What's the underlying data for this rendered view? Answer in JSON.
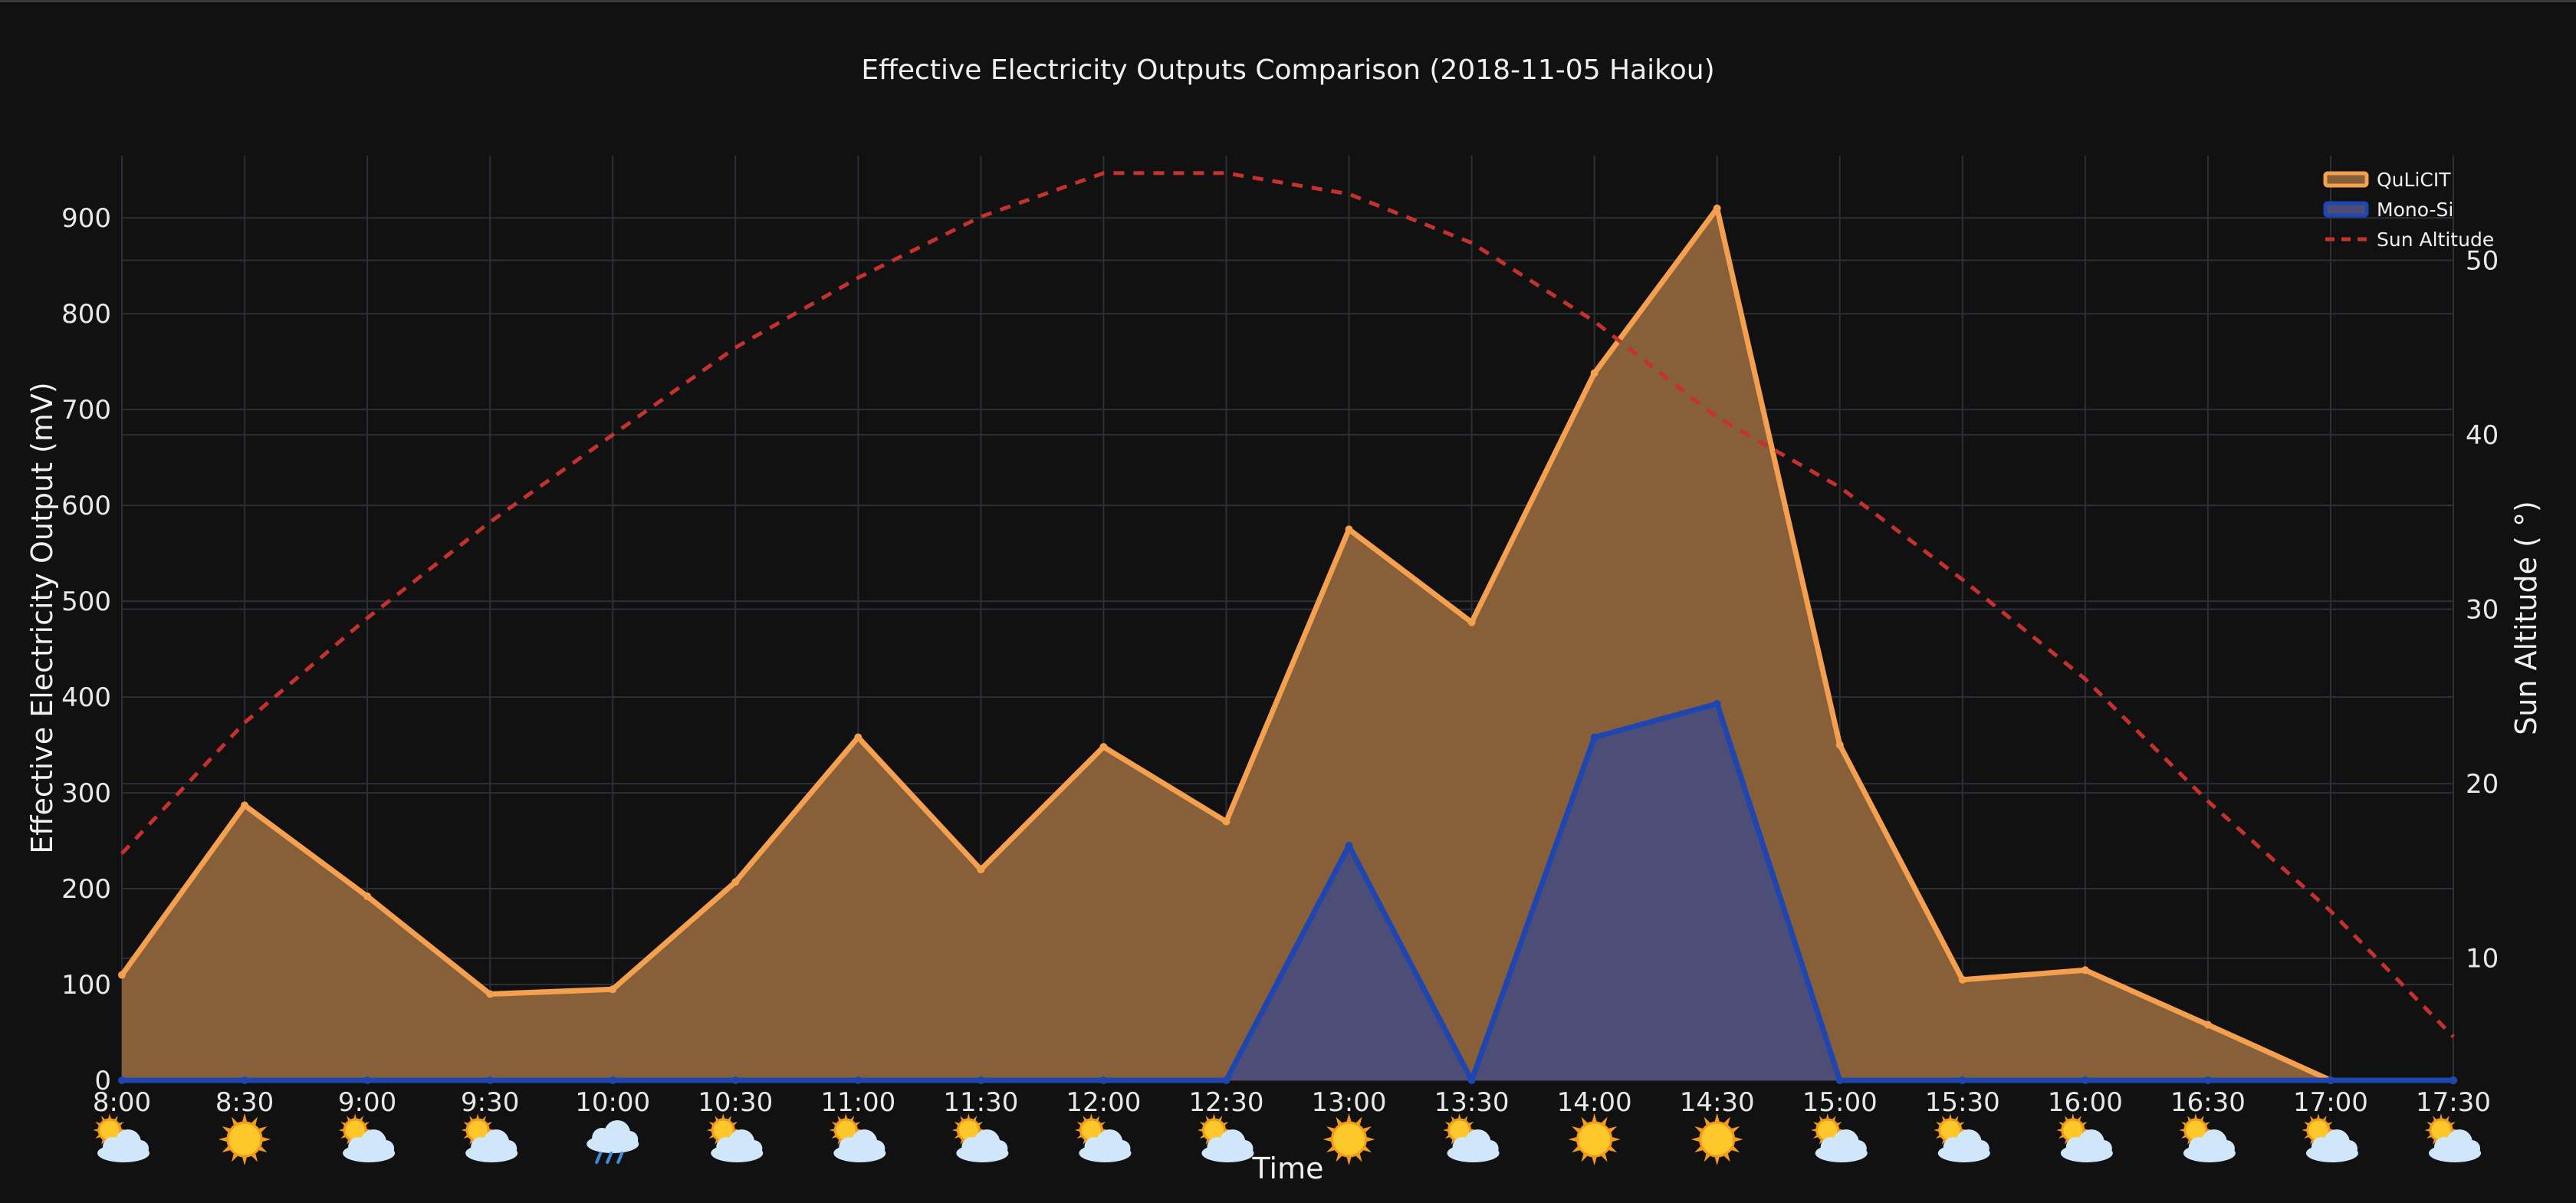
{
  "colors": {
    "background": "#111111",
    "grid": "#2b2f38",
    "qulicit_line": "#f5a04e",
    "qulicit_fill": "#87603a",
    "monosi_line": "#1f45b0",
    "monosi_fill": "#4c4e78",
    "sun_line": "#c5322e",
    "text": "#f0f0f0"
  },
  "chart_data": {
    "type": "area",
    "title": "Effective Electricity Outputs Comparison (2018-11-05 Haikou)",
    "xlabel": "Time",
    "ylabel": "Effective Electricity Output  (mV)",
    "y2label": "Sun Altitude ( °)",
    "categories": [
      "8:00",
      "8:30",
      "9:00",
      "9:30",
      "10:00",
      "10:30",
      "11:00",
      "11:30",
      "12:00",
      "12:30",
      "13:00",
      "13:30",
      "14:00",
      "14:30",
      "15:00",
      "15:30",
      "16:00",
      "16:30",
      "17:00",
      "17:30"
    ],
    "ylim": [
      0,
      965
    ],
    "yticks": [
      "0",
      "100",
      "200",
      "300",
      "400",
      "500",
      "600",
      "700",
      "800",
      "900"
    ],
    "y2lim": [
      3,
      56
    ],
    "y2ticks": [
      "10",
      "20",
      "30",
      "40",
      "50"
    ],
    "grid": true,
    "legend_position": "top-right",
    "series": [
      {
        "name": "QuLiCIT",
        "axis": "y",
        "values": [
          110,
          287,
          192,
          90,
          95,
          207,
          358,
          220,
          348,
          270,
          575,
          478,
          738,
          910,
          350,
          105,
          115,
          58,
          0,
          0
        ]
      },
      {
        "name": "Mono-Si",
        "axis": "y",
        "values": [
          0,
          0,
          0,
          0,
          0,
          0,
          0,
          0,
          0,
          0,
          245,
          0,
          358,
          393,
          0,
          0,
          0,
          0,
          0,
          0
        ]
      },
      {
        "name": "Sun Altitude",
        "axis": "y2",
        "values": [
          16,
          23.5,
          29.5,
          35,
          40,
          45,
          49,
          52.5,
          55,
          55,
          53.8,
          51,
          46.5,
          41,
          37,
          31.7,
          26,
          19,
          12.7,
          5.5
        ]
      }
    ],
    "weather": [
      "partly-cloudy",
      "sunny",
      "partly-cloudy",
      "partly-cloudy",
      "rain",
      "partly-cloudy",
      "partly-cloudy",
      "partly-cloudy",
      "partly-cloudy",
      "partly-cloudy",
      "sunny",
      "partly-cloudy",
      "sunny",
      "sunny",
      "partly-cloudy",
      "partly-cloudy",
      "partly-cloudy",
      "partly-cloudy",
      "partly-cloudy",
      "partly-cloudy"
    ]
  }
}
